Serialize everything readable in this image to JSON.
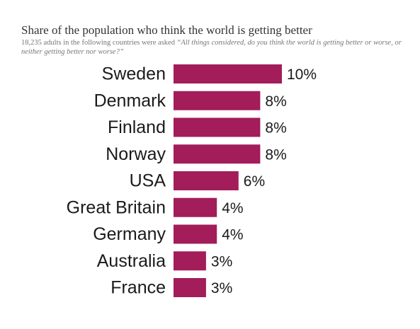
{
  "chart_data": {
    "type": "bar",
    "orientation": "horizontal",
    "title": "Share of the population who think the world is getting better",
    "subtitle_prefix": "18,235 adults in the following countries were asked ",
    "subtitle_quote": "“All things considered, do you think the world is getting better or worse, or neither getting better nor worse?”",
    "categories": [
      "Sweden",
      "Denmark",
      "Finland",
      "Norway",
      "USA",
      "Great Britain",
      "Germany",
      "Australia",
      "France"
    ],
    "values": [
      10,
      8,
      8,
      8,
      6,
      4,
      4,
      3,
      3
    ],
    "value_labels": [
      "10%",
      "8%",
      "8%",
      "8%",
      "6%",
      "4%",
      "4%",
      "3%",
      "3%"
    ],
    "bar_color": "#a31d5a",
    "xlim": [
      0,
      10
    ],
    "grid": false,
    "legend": "none"
  }
}
